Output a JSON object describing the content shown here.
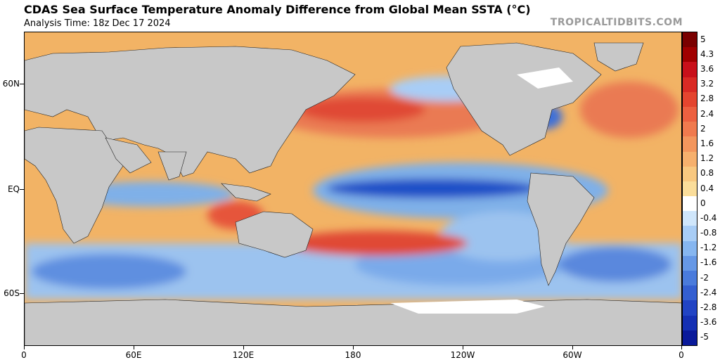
{
  "header": {
    "title": "CDAS Sea Surface Temperature Anomaly Difference from Global Mean SSTA (°C)",
    "analysis_time": "Analysis Time: 18z Dec 17 2024",
    "site": "TROPICALTIDBITS.COM"
  },
  "map": {
    "lat_labels": [
      "60N",
      "EQ",
      "60S"
    ],
    "lon_labels": [
      "0",
      "60E",
      "120E",
      "180",
      "120W",
      "60W",
      "0"
    ],
    "colors": {
      "land": "#c8c8c8",
      "ice": "#ffffff",
      "warm_mid": "#f2b365",
      "warm_strong": "#e04a35",
      "cool_mid": "#7fb0e8",
      "cool_strong": "#1f4fc7"
    }
  },
  "colorbar": {
    "labels": [
      "5",
      "4.3",
      "3.6",
      "3.2",
      "2.8",
      "2.4",
      "2",
      "1.6",
      "1.2",
      "0.8",
      "0.4",
      "0",
      "-0.4",
      "-0.8",
      "-1.2",
      "-1.6",
      "-2",
      "-2.4",
      "-2.8",
      "-3.6",
      "-5"
    ],
    "colors": [
      "#7a0000",
      "#a00000",
      "#c8101a",
      "#d92a24",
      "#e4452f",
      "#ec6040",
      "#f07a4e",
      "#f3965d",
      "#f6b06d",
      "#f8c880",
      "#fadd9a",
      "#ffffff",
      "#cfe6fb",
      "#a8cdf6",
      "#86b6f0",
      "#6698e6",
      "#4a7bdc",
      "#345fd1",
      "#2244c4",
      "#1530b3",
      "#0a1a9a"
    ]
  }
}
